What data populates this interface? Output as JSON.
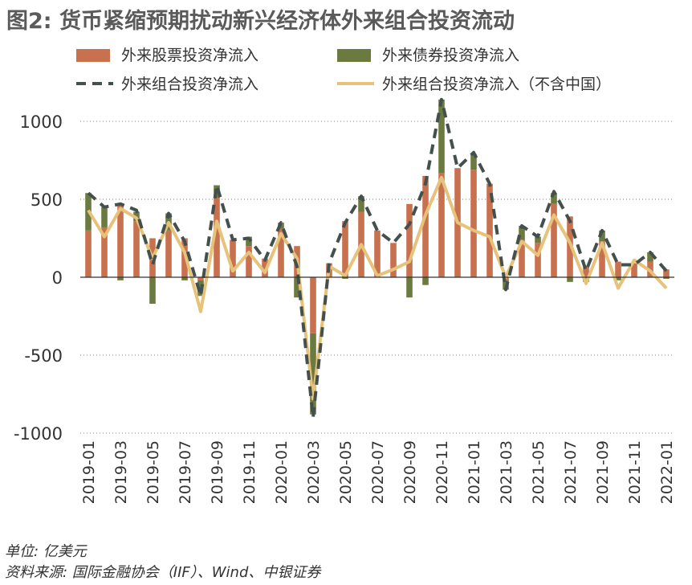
{
  "title": "图2: 货币紧缩预期扰动新兴经济体外来组合投资流动",
  "unit": "单位: 亿美元",
  "source": "资料来源: 国际金融协会（IIF）、Wind、中银证券",
  "colors": {
    "equity": "#c8714f",
    "bond": "#6b7a3f",
    "portfolio": "#44504d",
    "ex_china": "#e6c27a",
    "grid": "#7f7f7f",
    "axis": "#333333"
  },
  "chart_data": {
    "type": "bar+line",
    "title": "图2: 货币紧缩预期扰动新兴经济体外来组合投资流动",
    "ylabel": "亿美元",
    "ylim": [
      -1000,
      1200
    ],
    "yticks": [
      -1000,
      -500,
      0,
      500,
      1000
    ],
    "ytick_labels": [
      "-1000",
      "-500",
      "0",
      "500",
      "1000"
    ],
    "categories": [
      "2019-01",
      "2019-02",
      "2019-03",
      "2019-04",
      "2019-05",
      "2019-06",
      "2019-07",
      "2019-08",
      "2019-09",
      "2019-10",
      "2019-11",
      "2019-12",
      "2020-01",
      "2020-02",
      "2020-03",
      "2020-04",
      "2020-05",
      "2020-06",
      "2020-07",
      "2020-08",
      "2020-09",
      "2020-10",
      "2020-11",
      "2020-12",
      "2021-01",
      "2021-02",
      "2021-03",
      "2021-04",
      "2021-05",
      "2021-06",
      "2021-07",
      "2021-08",
      "2021-09",
      "2021-10",
      "2021-11",
      "2021-12",
      "2022-01"
    ],
    "x_tick_labels": [
      "2019-01",
      "2019-03",
      "2019-05",
      "2019-07",
      "2019-09",
      "2019-11",
      "2020-01",
      "2020-03",
      "2020-05",
      "2020-07",
      "2020-09",
      "2020-11",
      "2021-01",
      "2021-03",
      "2021-05",
      "2021-07",
      "2021-09",
      "2021-11",
      "2022-01"
    ],
    "series": [
      {
        "name": "外来股票投资净流入",
        "kind": "bar",
        "values": [
          300,
          320,
          470,
          360,
          250,
          300,
          250,
          -20,
          510,
          240,
          200,
          120,
          310,
          200,
          -360,
          90,
          360,
          420,
          300,
          220,
          470,
          650,
          670,
          700,
          690,
          600,
          -20,
          240,
          220,
          470,
          390,
          70,
          230,
          100,
          90,
          100,
          50
        ]
      },
      {
        "name": "外来债券投资净流入",
        "kind": "bar",
        "values": [
          240,
          130,
          -20,
          60,
          -170,
          110,
          -20,
          -100,
          80,
          0,
          60,
          0,
          40,
          -130,
          -520,
          0,
          -10,
          100,
          0,
          0,
          -130,
          -50,
          470,
          0,
          100,
          0,
          -60,
          90,
          40,
          70,
          -30,
          -30,
          70,
          -20,
          0,
          60,
          -10
        ]
      },
      {
        "name": "外来组合投资净流入",
        "kind": "line",
        "style": "dashed",
        "values": [
          540,
          450,
          470,
          430,
          80,
          410,
          230,
          -120,
          590,
          240,
          250,
          110,
          350,
          70,
          -900,
          90,
          350,
          520,
          300,
          220,
          340,
          600,
          1140,
          700,
          800,
          600,
          -80,
          330,
          260,
          550,
          360,
          40,
          300,
          80,
          80,
          160,
          40
        ]
      },
      {
        "name": "外来组合投资净流入（不含中国）",
        "kind": "line",
        "style": "solid",
        "values": [
          430,
          260,
          440,
          380,
          120,
          350,
          160,
          -220,
          360,
          40,
          160,
          30,
          280,
          120,
          -780,
          70,
          10,
          210,
          10,
          50,
          100,
          400,
          640,
          350,
          300,
          260,
          0,
          230,
          140,
          400,
          220,
          -40,
          220,
          -70,
          110,
          40,
          -70
        ]
      }
    ]
  }
}
